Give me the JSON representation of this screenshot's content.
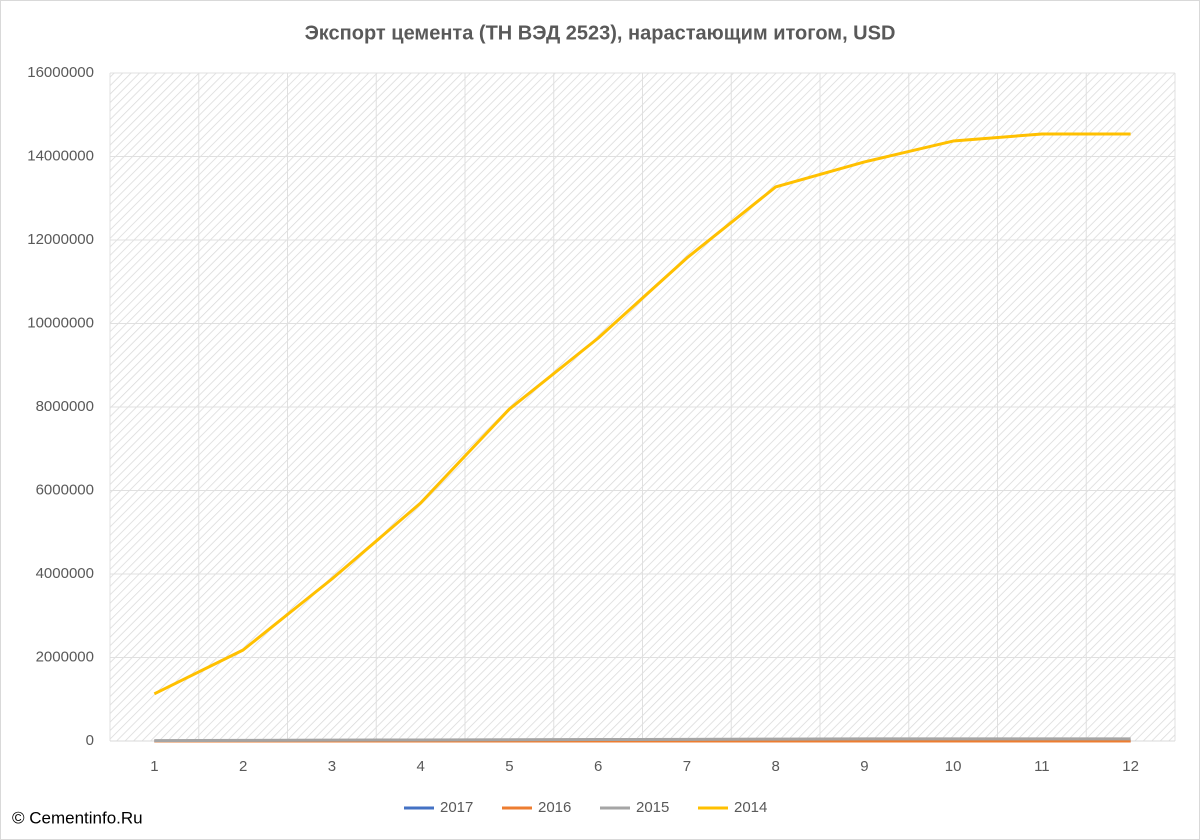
{
  "chart_data": {
    "type": "line",
    "title": "Экспорт цемента (ТН ВЭД 2523), нарастающим итогом, USD",
    "source": "© Cementinfo.Ru",
    "categories": [
      "1",
      "2",
      "3",
      "4",
      "5",
      "6",
      "7",
      "8",
      "9",
      "10",
      "11",
      "12"
    ],
    "series": [
      {
        "name": "2017",
        "color": "#4472c4",
        "values": [
          0,
          0,
          0,
          0,
          0,
          0,
          0,
          0,
          0,
          0,
          0,
          0
        ]
      },
      {
        "name": "2016",
        "color": "#ed7d31",
        "values": [
          0,
          0,
          0,
          0,
          0,
          0,
          0,
          0,
          0,
          0,
          0,
          0
        ]
      },
      {
        "name": "2015",
        "color": "#a5a5a5",
        "values": [
          10000,
          15000,
          20000,
          25000,
          30000,
          35000,
          40000,
          45000,
          50000,
          50000,
          50000,
          50000
        ]
      },
      {
        "name": "2014",
        "color": "#ffc000",
        "values": [
          1130000,
          2180000,
          3880000,
          5700000,
          7950000,
          9650000,
          11570000,
          13270000,
          13870000,
          14370000,
          14540000,
          14540000
        ]
      }
    ],
    "ylim": [
      0,
      16000000
    ],
    "yticks": [
      0,
      2000000,
      4000000,
      6000000,
      8000000,
      10000000,
      12000000,
      14000000,
      16000000
    ],
    "grid": true,
    "legend": "bottom"
  }
}
